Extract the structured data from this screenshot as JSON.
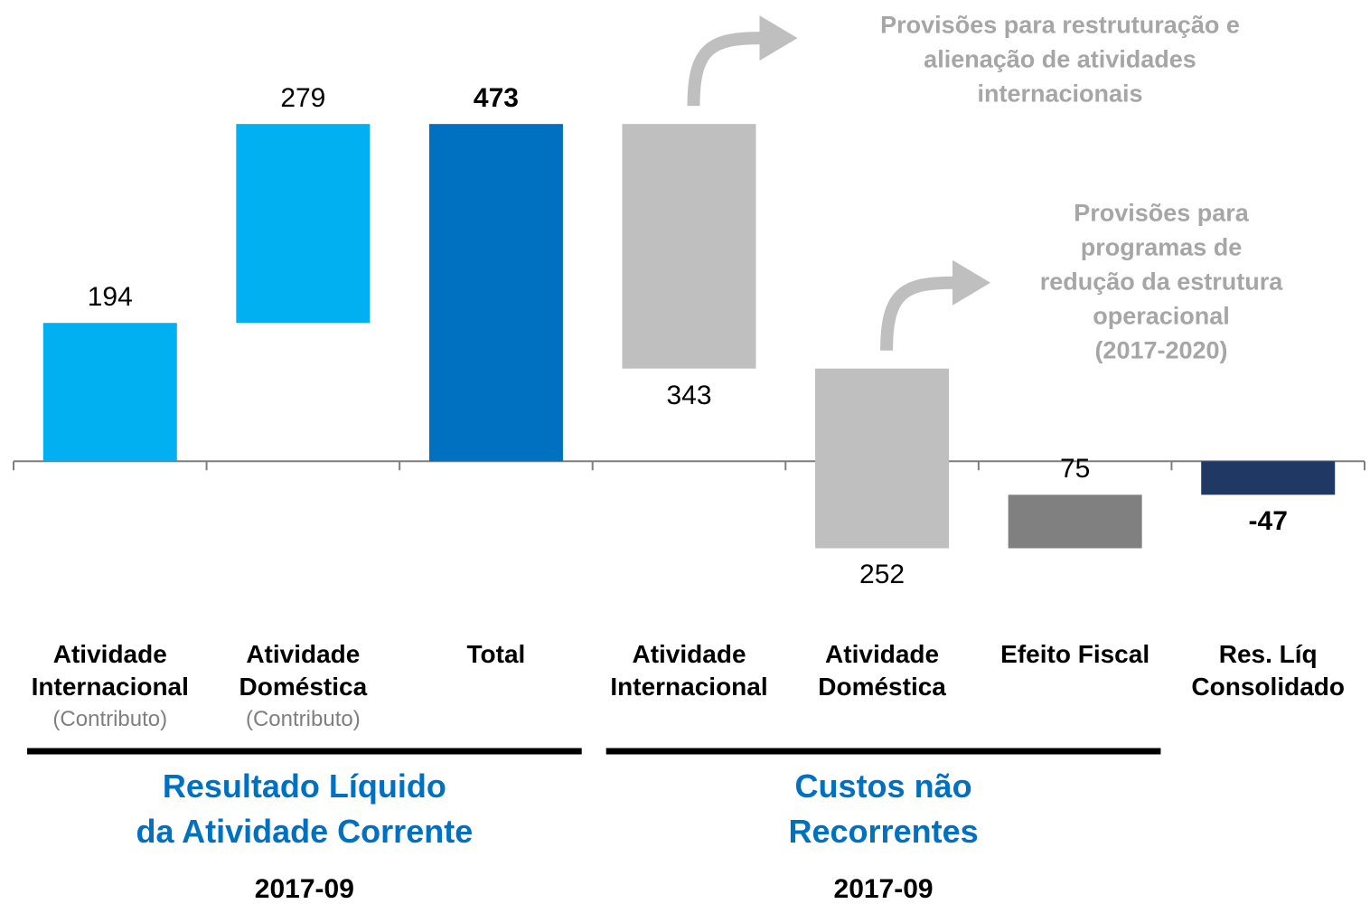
{
  "chart_data": {
    "type": "waterfall",
    "categories": [
      [
        "Atividade",
        "Internacional"
      ],
      [
        "Atividade",
        "Doméstica"
      ],
      [
        "Total"
      ],
      [
        "Atividade",
        "Internacional"
      ],
      [
        "Atividade",
        "Doméstica"
      ],
      [
        "Efeito Fiscal"
      ],
      [
        "Res. Líq",
        "Consolidado"
      ]
    ],
    "category_notes": [
      "(Contributo)",
      "(Contributo)",
      null,
      null,
      null,
      null,
      null
    ],
    "values": [
      194,
      279,
      473,
      -343,
      -252,
      75,
      -47
    ],
    "value_labels": [
      "194",
      "279",
      "473",
      "343",
      "252",
      "75",
      "-47"
    ],
    "measure": [
      "relative",
      "relative",
      "total",
      "relative",
      "relative",
      "relative",
      "total"
    ],
    "colors": [
      "#00b0f0",
      "#00b0f0",
      "#0070c0",
      "#bfbfbf",
      "#bfbfbf",
      "#808080",
      "#1f3864"
    ],
    "ylim": [
      -200,
      600
    ],
    "groups": [
      {
        "label": [
          "Resultado Líquido",
          "da Atividade Corrente"
        ],
        "period": "2017-09",
        "from": 0,
        "to": 2
      },
      {
        "label": [
          "Custos não",
          "Recorrentes"
        ],
        "period": "2017-09",
        "from": 3,
        "to": 5
      }
    ],
    "annotations": [
      {
        "lines": [
          "Provisões para restruturação e",
          "alienação de atividades",
          "internacionais"
        ],
        "target": 3
      },
      {
        "lines": [
          "Provisões para",
          "programas de",
          "redução da estrutura",
          "operacional",
          "(2017-2020)"
        ],
        "target": 4
      }
    ]
  }
}
